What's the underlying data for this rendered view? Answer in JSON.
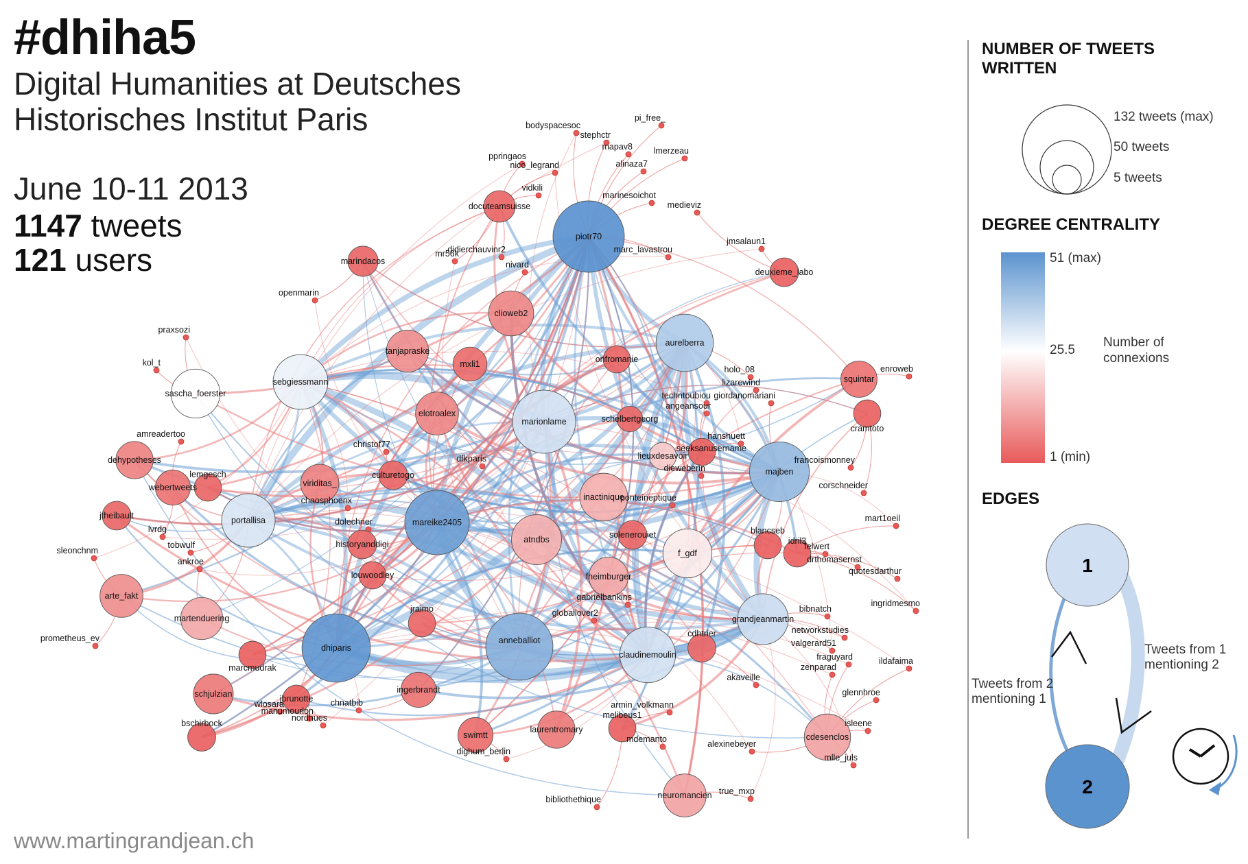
{
  "header": {
    "title": "#dhiha5",
    "subtitle_line1": "Digital Humanities at Deutsches",
    "subtitle_line2": "Historisches Institut Paris",
    "dates": "June 10-11 2013",
    "tweets_count": "1147",
    "tweets_label": "tweets",
    "users_count": "121",
    "users_label": "users"
  },
  "footer": {
    "website": "www.martingrandjean.ch"
  },
  "legend": {
    "size_title_line1": "NUMBER OF TWEETS",
    "size_title_line2": "WRITTEN",
    "size_max": "132 tweets (max)",
    "size_mid": "50 tweets",
    "size_min": "5 tweets",
    "degree_title": "DEGREE CENTRALITY",
    "degree_max": "51 (max)",
    "degree_mid": "25.5",
    "degree_min": "1 (min)",
    "degree_note_line1": "Number of",
    "degree_note_line2": "connexions",
    "edges_title": "EDGES",
    "edge_node_1": "1",
    "edge_node_2": "2",
    "edge_from1_line1": "Tweets from 1",
    "edge_from1_line2": "mentioning 2",
    "edge_from2_line1": "Tweets from 2",
    "edge_from2_line2": "mentioning 1"
  },
  "colors": {
    "high": "#5b93cf",
    "mid": "#ffffff",
    "low": "#e85a5a",
    "edge_blue": "#6b9fd4",
    "edge_red": "#e97a7a"
  },
  "network": {
    "hubs": [
      "piotr70",
      "mareike2405",
      "dhiparis",
      "anneballlot",
      "majben",
      "marionlame",
      "aurelberra",
      "claudinemoulin",
      "portallisa",
      "sebgiessmann",
      "grandjeanmartin"
    ],
    "nodes": [
      {
        "id": "piotr70",
        "label": "piotr70",
        "size": 132,
        "degree": 51
      },
      {
        "id": "dhiparis",
        "label": "dhiparis",
        "size": 120,
        "degree": 50
      },
      {
        "id": "mareike2405",
        "label": "mareike2405",
        "size": 105,
        "degree": 48
      },
      {
        "id": "anneballlot",
        "label": "anneballiot",
        "size": 115,
        "degree": 44
      },
      {
        "id": "majben",
        "label": "majben",
        "size": 88,
        "degree": 42
      },
      {
        "id": "marionlame",
        "label": "marionlame",
        "size": 100,
        "degree": 33
      },
      {
        "id": "aurelberra",
        "label": "aurelberra",
        "size": 80,
        "degree": 38
      },
      {
        "id": "claudinemoulin",
        "label": "claudinemoulin",
        "size": 75,
        "degree": 33
      },
      {
        "id": "portallisa",
        "label": "portallisa",
        "size": 68,
        "degree": 32
      },
      {
        "id": "sebgiessmann",
        "label": "sebgiessmann",
        "size": 72,
        "degree": 29
      },
      {
        "id": "grandjeanmartin",
        "label": "grandjeanmartin",
        "size": 60,
        "degree": 34
      },
      {
        "id": "sascha_foerster",
        "label": "sascha_foerster",
        "size": 55,
        "degree": 26
      },
      {
        "id": "f_gdf",
        "label": "f_gdf",
        "size": 55,
        "degree": 23
      },
      {
        "id": "inactinique",
        "label": "inactinique",
        "size": 52,
        "degree": 14
      },
      {
        "id": "atndbs",
        "label": "atndbs",
        "size": 58,
        "degree": 14
      },
      {
        "id": "cdesenclos",
        "label": "cdesenclos",
        "size": 48,
        "degree": 12
      },
      {
        "id": "neuromancien",
        "label": "neuromancien",
        "size": 40,
        "degree": 12
      },
      {
        "id": "martenduering",
        "label": "martenduering",
        "size": 38,
        "degree": 13
      },
      {
        "id": "arte_fakt",
        "label": "arte_fakt",
        "size": 40,
        "degree": 9
      },
      {
        "id": "fheimburger",
        "label": "fheimburger",
        "size": 32,
        "degree": 13
      },
      {
        "id": "clioweb2",
        "label": "clioweb2",
        "size": 45,
        "degree": 8
      },
      {
        "id": "tanjapraske",
        "label": "tanjapraske",
        "size": 38,
        "degree": 9
      },
      {
        "id": "elotroalex",
        "label": "elotroalex",
        "size": 40,
        "degree": 8
      },
      {
        "id": "schjulzian",
        "label": "schjulzian",
        "size": 33,
        "degree": 6
      },
      {
        "id": "viriditas_",
        "label": "viriditas_",
        "size": 30,
        "degree": 7
      },
      {
        "id": "laurentromary",
        "label": "laurentromary",
        "size": 28,
        "degree": 6
      },
      {
        "id": "dehypotheses",
        "label": "dehypotheses",
        "size": 28,
        "degree": 7
      },
      {
        "id": "squintar",
        "label": "squintar",
        "size": 26,
        "degree": 5
      },
      {
        "id": "swimtt",
        "label": "swimtt",
        "size": 24,
        "degree": 4
      },
      {
        "id": "ingerbrandt",
        "label": "ingerbrandt",
        "size": 24,
        "degree": 5
      },
      {
        "id": "webertweets",
        "label": "webertweets",
        "size": 24,
        "degree": 5
      },
      {
        "id": "mxli1",
        "label": "mxli1",
        "size": 22,
        "degree": 4
      },
      {
        "id": "docuteamsuisse",
        "label": "docuteamsuisse",
        "size": 18,
        "degree": 3
      },
      {
        "id": "marindacos",
        "label": "marindacos",
        "size": 16,
        "degree": 3
      },
      {
        "id": "deuxieme_labo",
        "label": "deuxieme_labo",
        "size": 14,
        "degree": 2
      },
      {
        "id": "historyanddigi",
        "label": "historyanddigi",
        "size": 14,
        "degree": 3
      },
      {
        "id": "jtheibault",
        "label": "jtheibault",
        "size": 14,
        "degree": 3
      },
      {
        "id": "louwoodley",
        "label": "louwoodley",
        "size": 12,
        "degree": 3
      },
      {
        "id": "culturetogo",
        "label": "culturetogo",
        "size": 14,
        "degree": 3
      },
      {
        "id": "bschirbock",
        "label": "bschirbock",
        "size": 13,
        "degree": 2
      },
      {
        "id": "jbrunotte",
        "label": "jbrunotte",
        "size": 12,
        "degree": 2
      },
      {
        "id": "marcmudrak",
        "label": "marcmudrak",
        "size": 12,
        "degree": 2
      },
      {
        "id": "melibeus1",
        "label": "melibeus1",
        "size": 12,
        "degree": 2
      },
      {
        "id": "cdhtrier",
        "label": "cdhtrier",
        "size": 13,
        "degree": 3
      },
      {
        "id": "jraimo",
        "label": "jraimo",
        "size": 12,
        "degree": 3
      },
      {
        "id": "solenerouiet",
        "label": "solenerouiet",
        "size": 14,
        "degree": 3
      },
      {
        "id": "blancseb",
        "label": "blancseb",
        "size": 12,
        "degree": 2
      },
      {
        "id": "idril3",
        "label": "idril3",
        "size": 12,
        "degree": 2
      },
      {
        "id": "cramtoto",
        "label": "cramtoto",
        "size": 12,
        "degree": 2
      },
      {
        "id": "seeksanusername",
        "label": "seeksanusername",
        "size": 12,
        "degree": 2
      },
      {
        "id": "lieuxdesavoir",
        "label": "lieuxdesavoir",
        "size": 12,
        "degree": 18
      },
      {
        "id": "lemgesch",
        "label": "lemgesch",
        "size": 12,
        "degree": 3
      },
      {
        "id": "onfromanie",
        "label": "onfromanie",
        "size": 12,
        "degree": 3
      },
      {
        "id": "schelbertgeorg",
        "label": "schelbertgeorg",
        "size": 10,
        "degree": 3
      },
      {
        "id": "bodyspacesoc",
        "label": "bodyspacesoc",
        "size": 1,
        "degree": 1
      },
      {
        "id": "stephctr",
        "label": "stephctr",
        "size": 1,
        "degree": 1
      },
      {
        "id": "pi_free_",
        "label": "pi_free_",
        "size": 1,
        "degree": 1
      },
      {
        "id": "mapav8",
        "label": "mapav8",
        "size": 1,
        "degree": 1
      },
      {
        "id": "lmerzeau",
        "label": "lmerzeau",
        "size": 1,
        "degree": 1
      },
      {
        "id": "ppringaos",
        "label": "ppringaos",
        "size": 1,
        "degree": 1
      },
      {
        "id": "nico_legrand",
        "label": "nico_legrand",
        "size": 1,
        "degree": 1
      },
      {
        "id": "alinaza7",
        "label": "alinaza7",
        "size": 1,
        "degree": 1
      },
      {
        "id": "vidkili",
        "label": "vidkili",
        "size": 1,
        "degree": 1
      },
      {
        "id": "marinesoichot",
        "label": "marinesoichot",
        "size": 1,
        "degree": 1
      },
      {
        "id": "medieviz",
        "label": "medieviz",
        "size": 1,
        "degree": 1
      },
      {
        "id": "jmsalaun1",
        "label": "jmsalaun1",
        "size": 1,
        "degree": 1
      },
      {
        "id": "mr56k",
        "label": "mr56k",
        "size": 1,
        "degree": 1
      },
      {
        "id": "didierchauvinr2",
        "label": "didierchauvinr2",
        "size": 1,
        "degree": 1
      },
      {
        "id": "marc_lavastrou",
        "label": "marc_lavastrou",
        "size": 1,
        "degree": 1
      },
      {
        "id": "nivard",
        "label": "nivard",
        "size": 1,
        "degree": 1
      },
      {
        "id": "openmarin",
        "label": "openmarin",
        "size": 1,
        "degree": 1
      },
      {
        "id": "praxsozi",
        "label": "praxsozi",
        "size": 1,
        "degree": 1
      },
      {
        "id": "kol_t",
        "label": "kol_t",
        "size": 1,
        "degree": 1
      },
      {
        "id": "amreadertoo",
        "label": "amreadertoo",
        "size": 1,
        "degree": 1
      },
      {
        "id": "holo_08",
        "label": "holo_08",
        "size": 1,
        "degree": 1
      },
      {
        "id": "lizarewind",
        "label": "lizarewind",
        "size": 1,
        "degree": 1
      },
      {
        "id": "giordanomariani",
        "label": "giordanomariani",
        "size": 1,
        "degree": 1
      },
      {
        "id": "techntoubiou",
        "label": "techntoubiou",
        "size": 1,
        "degree": 1
      },
      {
        "id": "angeansour",
        "label": "angeansour",
        "size": 1,
        "degree": 1
      },
      {
        "id": "enroweb",
        "label": "enroweb",
        "size": 1,
        "degree": 1
      },
      {
        "id": "hanshuett",
        "label": "hanshuett",
        "size": 1,
        "degree": 1
      },
      {
        "id": "christof77",
        "label": "christof77",
        "size": 1,
        "degree": 1
      },
      {
        "id": "dfkparis",
        "label": "dfkparis",
        "size": 1,
        "degree": 1
      },
      {
        "id": "francoismonney",
        "label": "francoismonney",
        "size": 1,
        "degree": 1
      },
      {
        "id": "dieweberin",
        "label": "dieweberin",
        "size": 1,
        "degree": 1
      },
      {
        "id": "corschneider",
        "label": "corschneider",
        "size": 1,
        "degree": 1
      },
      {
        "id": "chaosphoenx",
        "label": "chaosphoenx",
        "size": 1,
        "degree": 1
      },
      {
        "id": "ponteineptique",
        "label": "ponteineptique",
        "size": 1,
        "degree": 1
      },
      {
        "id": "mart1oeil",
        "label": "mart1oeil",
        "size": 1,
        "degree": 1
      },
      {
        "id": "dolechner",
        "label": "dolechner",
        "size": 1,
        "degree": 1
      },
      {
        "id": "lvrdg",
        "label": "lvrdg",
        "size": 1,
        "degree": 1
      },
      {
        "id": "felwert",
        "label": "felwert",
        "size": 1,
        "degree": 1
      },
      {
        "id": "drthomasernst",
        "label": "drthomasernst",
        "size": 1,
        "degree": 1
      },
      {
        "id": "quotesdarthur",
        "label": "quotesdarthur",
        "size": 1,
        "degree": 1
      },
      {
        "id": "sleonchnm",
        "label": "sleonchnm",
        "size": 1,
        "degree": 1
      },
      {
        "id": "tobwulf",
        "label": "tobwulf",
        "size": 1,
        "degree": 1
      },
      {
        "id": "ankroe",
        "label": "ankroe",
        "size": 1,
        "degree": 1
      },
      {
        "id": "gabrielbankins",
        "label": "gabrielbankins",
        "size": 1,
        "degree": 1
      },
      {
        "id": "ingridmesmo",
        "label": "ingridmesmo",
        "size": 1,
        "degree": 1
      },
      {
        "id": "globallover2",
        "label": "globallover2",
        "size": 1,
        "degree": 1
      },
      {
        "id": "bibnatch",
        "label": "bibnatch",
        "size": 1,
        "degree": 1
      },
      {
        "id": "networkstudies",
        "label": "networkstudies",
        "size": 1,
        "degree": 1
      },
      {
        "id": "valgerard51",
        "label": "valgerard51",
        "size": 1,
        "degree": 1
      },
      {
        "id": "prometheus_ev",
        "label": "prometheus_ev",
        "size": 1,
        "degree": 1
      },
      {
        "id": "fraguyard",
        "label": "fraguyard",
        "size": 1,
        "degree": 1
      },
      {
        "id": "ildafaima",
        "label": "ildafaima",
        "size": 1,
        "degree": 1
      },
      {
        "id": "zenparad",
        "label": "zenparad",
        "size": 1,
        "degree": 1
      },
      {
        "id": "akaveille",
        "label": "akaveille",
        "size": 1,
        "degree": 1
      },
      {
        "id": "glennhroe",
        "label": "glennhroe",
        "size": 1,
        "degree": 1
      },
      {
        "id": "wlosara",
        "label": "wlosara",
        "size": 1,
        "degree": 1
      },
      {
        "id": "chnatbib",
        "label": "chnatbib",
        "size": 1,
        "degree": 1
      },
      {
        "id": "armin_volkmann",
        "label": "armin_volkmann",
        "size": 1,
        "degree": 1
      },
      {
        "id": "manumourlon",
        "label": "manumourlon",
        "size": 1,
        "degree": 1
      },
      {
        "id": "nordhues",
        "label": "nordhues",
        "size": 1,
        "degree": 1
      },
      {
        "id": "isleene",
        "label": "isleene",
        "size": 1,
        "degree": 1
      },
      {
        "id": "mdemanto",
        "label": "mdemanto",
        "size": 1,
        "degree": 1
      },
      {
        "id": "alexinebeyer",
        "label": "alexinebeyer",
        "size": 1,
        "degree": 1
      },
      {
        "id": "dighum_berlin",
        "label": "dighum_berlin",
        "size": 1,
        "degree": 1
      },
      {
        "id": "mlle_juls",
        "label": "mlle_juls",
        "size": 1,
        "degree": 1
      },
      {
        "id": "true_mxp",
        "label": "true_mxp",
        "size": 1,
        "degree": 1
      },
      {
        "id": "bibliothethique",
        "label": "bibliothethique",
        "size": 1,
        "degree": 1
      }
    ]
  }
}
